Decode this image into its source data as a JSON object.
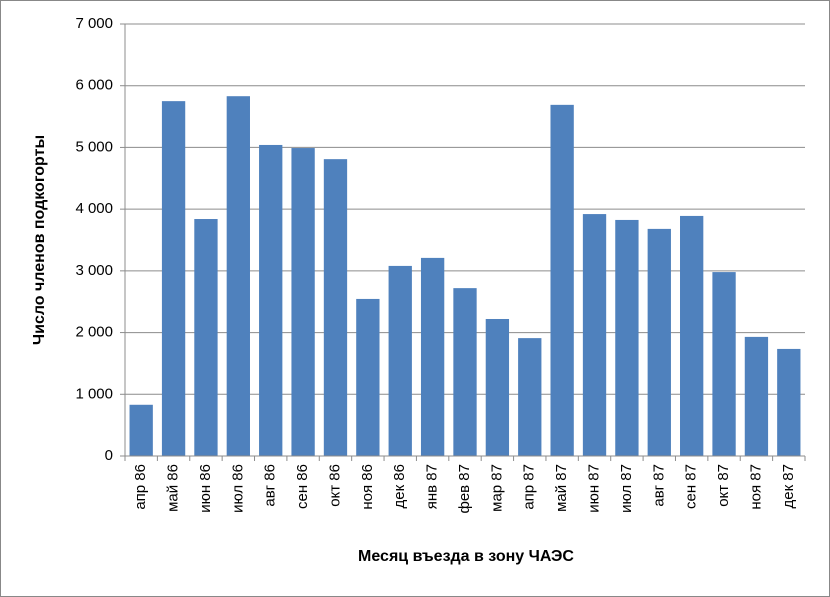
{
  "chart_data": {
    "type": "bar",
    "x_label": "Месяц въезда в зону ЧАЭС",
    "y_label": "Число членов подкогорты",
    "categories": [
      "апр 86",
      "май 86",
      "июн 86",
      "июл 86",
      "авг 86",
      "сен 86",
      "окт 86",
      "ноя 86",
      "дек 86",
      "янв 87",
      "фев 87",
      "мар 87",
      "апр 87",
      "май 87",
      "июн 87",
      "июл 87",
      "авг 87",
      "сен 87",
      "окт 87",
      "ноя 87",
      "дек 87"
    ],
    "values": [
      830,
      5750,
      3840,
      5830,
      5040,
      4990,
      4810,
      2545,
      3080,
      3210,
      2720,
      2220,
      1910,
      5690,
      3920,
      3825,
      3680,
      3890,
      2980,
      1930,
      1735
    ],
    "color": "#4f81bd",
    "ylim": [
      0,
      7000
    ],
    "yticks": [
      0,
      {
        "value": 1000,
        "label": "1 000"
      },
      {
        "value": 2000,
        "label": "2 000"
      },
      {
        "value": 3000,
        "label": "3 000"
      },
      {
        "value": 4000,
        "label": "4 000"
      },
      {
        "value": 5000,
        "label": "5 000"
      },
      {
        "value": 6000,
        "label": "6 000"
      },
      {
        "value": 7000,
        "label": "7 000"
      }
    ],
    "grid": true
  }
}
